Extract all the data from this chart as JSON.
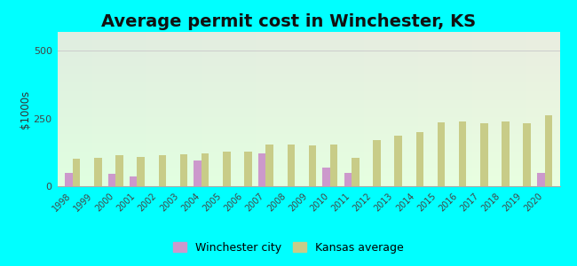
{
  "title": "Average permit cost in Winchester, KS",
  "ylabel": "$1000s",
  "years": [
    1998,
    1999,
    2000,
    2001,
    2002,
    2003,
    2004,
    2005,
    2006,
    2007,
    2008,
    2009,
    2010,
    2011,
    2012,
    2013,
    2014,
    2015,
    2016,
    2017,
    2018,
    2019,
    2020
  ],
  "winchester": [
    50,
    0,
    45,
    35,
    0,
    0,
    95,
    0,
    0,
    120,
    0,
    0,
    70,
    50,
    0,
    0,
    0,
    0,
    0,
    0,
    0,
    0,
    50
  ],
  "kansas": [
    100,
    105,
    115,
    108,
    115,
    118,
    122,
    128,
    128,
    155,
    155,
    152,
    155,
    105,
    170,
    188,
    200,
    235,
    240,
    232,
    238,
    232,
    262
  ],
  "winchester_color": "#cc99cc",
  "kansas_color": "#c8cc88",
  "outer_bg": "#00ffff",
  "ylim": [
    0,
    570
  ],
  "yticks": [
    0,
    250,
    500
  ],
  "bar_width": 0.35,
  "title_fontsize": 14,
  "legend_fontsize": 9
}
